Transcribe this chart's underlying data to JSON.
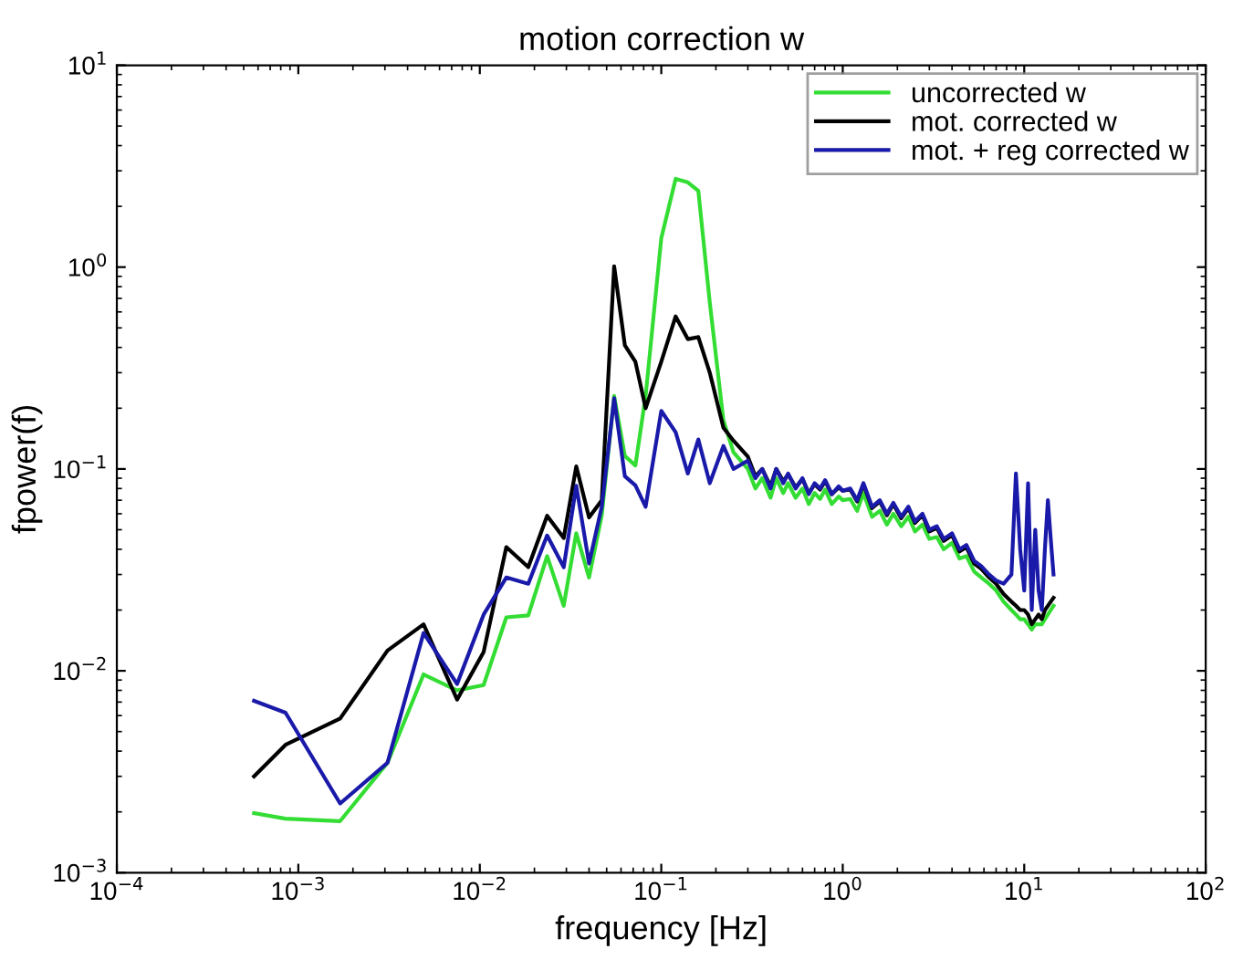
{
  "chart_data": {
    "type": "line",
    "title": "motion correction w",
    "xlabel": "frequency [Hz]",
    "ylabel": "fpower(f)",
    "log": "xy",
    "grid": false,
    "legend": "top right",
    "line_style": "solid",
    "marker": "none",
    "xlim": [
      0.0001,
      100
    ],
    "ylim": [
      0.001,
      10
    ],
    "xticks": [
      {
        "value": 0.0001,
        "label": "10$^{−4}$"
      },
      {
        "value": 0.001,
        "label": "10$^{−3}$"
      },
      {
        "value": 0.01,
        "label": "10$^{−2}$"
      },
      {
        "value": 0.1,
        "label": "10$^{−1}$"
      },
      {
        "value": 1,
        "label": "10$^{0}$"
      },
      {
        "value": 10,
        "label": "10$^{1}$"
      },
      {
        "value": 100,
        "label": "10$^{2}$"
      }
    ],
    "yticks": [
      {
        "value": 0.001,
        "label": "10$^{−3}$"
      },
      {
        "value": 0.01,
        "label": "10$^{−2}$"
      },
      {
        "value": 0.1,
        "label": "10$^{−1}$"
      },
      {
        "value": 1,
        "label": "10$^{0}$"
      },
      {
        "value": 10,
        "label": "10$^{1}$"
      }
    ],
    "x": [
      0.00057,
      0.00085,
      0.0017,
      0.0031,
      0.0049,
      0.0075,
      0.0105,
      0.014,
      0.0185,
      0.0235,
      0.029,
      0.034,
      0.04,
      0.047,
      0.055,
      0.063,
      0.072,
      0.082,
      0.1,
      0.12,
      0.14,
      0.16,
      0.185,
      0.22,
      0.25,
      0.3,
      0.33,
      0.36,
      0.4,
      0.43,
      0.47,
      0.5,
      0.55,
      0.6,
      0.65,
      0.7,
      0.75,
      0.8,
      0.87,
      0.95,
      1.0,
      1.1,
      1.2,
      1.3,
      1.45,
      1.6,
      1.75,
      1.9,
      2.1,
      2.3,
      2.5,
      2.75,
      3.0,
      3.3,
      3.6,
      4.0,
      4.4,
      4.8,
      5.3,
      5.8,
      6.4,
      7.0,
      7.7,
      8.5,
      9.0,
      9.5,
      10,
      10.5,
      11,
      11.5,
      12,
      12.5,
      13,
      13.5,
      14,
      14.5
    ],
    "series": [
      {
        "name": "uncorrected w",
        "color": "#33dd33",
        "values": [
          0.00197,
          0.00185,
          0.0018,
          0.0035,
          0.0096,
          0.008,
          0.0085,
          0.0184,
          0.0188,
          0.037,
          0.021,
          0.048,
          0.029,
          0.059,
          0.23,
          0.116,
          0.104,
          0.23,
          1.39,
          2.74,
          2.63,
          2.39,
          0.67,
          0.174,
          0.121,
          0.1,
          0.08,
          0.09,
          0.072,
          0.09,
          0.076,
          0.085,
          0.072,
          0.08,
          0.067,
          0.076,
          0.071,
          0.079,
          0.067,
          0.073,
          0.07,
          0.071,
          0.062,
          0.076,
          0.058,
          0.062,
          0.053,
          0.06,
          0.052,
          0.058,
          0.049,
          0.053,
          0.045,
          0.046,
          0.04,
          0.043,
          0.036,
          0.037,
          0.031,
          0.029,
          0.027,
          0.025,
          0.022,
          0.02,
          0.019,
          0.018,
          0.018,
          0.017,
          0.016,
          0.017,
          0.017,
          0.017,
          0.018,
          0.019,
          0.02,
          0.021
        ]
      },
      {
        "name": "mot. corrected w",
        "color": "#000000",
        "values": [
          0.003,
          0.0043,
          0.0058,
          0.0126,
          0.017,
          0.0072,
          0.0124,
          0.041,
          0.0326,
          0.0586,
          0.0455,
          0.103,
          0.0575,
          0.07,
          1.01,
          0.41,
          0.34,
          0.2,
          0.34,
          0.57,
          0.44,
          0.45,
          0.3,
          0.16,
          0.138,
          0.115,
          0.092,
          0.1,
          0.082,
          0.1,
          0.087,
          0.094,
          0.081,
          0.089,
          0.076,
          0.084,
          0.079,
          0.087,
          0.075,
          0.081,
          0.078,
          0.079,
          0.069,
          0.084,
          0.064,
          0.069,
          0.059,
          0.067,
          0.057,
          0.064,
          0.054,
          0.059,
          0.049,
          0.051,
          0.044,
          0.047,
          0.039,
          0.041,
          0.034,
          0.032,
          0.029,
          0.027,
          0.024,
          0.022,
          0.021,
          0.02,
          0.02,
          0.019,
          0.017,
          0.018,
          0.019,
          0.018,
          0.02,
          0.021,
          0.022,
          0.023
        ]
      },
      {
        "name": "mot. + reg corrected w",
        "color": "#1a1aaa",
        "values": [
          0.0071,
          0.0062,
          0.0022,
          0.0035,
          0.0154,
          0.0086,
          0.019,
          0.029,
          0.027,
          0.0468,
          0.0326,
          0.0826,
          0.034,
          0.065,
          0.224,
          0.092,
          0.083,
          0.065,
          0.194,
          0.152,
          0.095,
          0.14,
          0.085,
          0.13,
          0.1,
          0.11,
          0.09,
          0.1,
          0.08,
          0.1,
          0.085,
          0.095,
          0.08,
          0.09,
          0.075,
          0.085,
          0.08,
          0.088,
          0.075,
          0.082,
          0.078,
          0.08,
          0.07,
          0.085,
          0.065,
          0.07,
          0.06,
          0.068,
          0.058,
          0.065,
          0.055,
          0.06,
          0.05,
          0.052,
          0.045,
          0.048,
          0.04,
          0.042,
          0.035,
          0.033,
          0.03,
          0.028,
          0.027,
          0.03,
          0.095,
          0.04,
          0.025,
          0.085,
          0.02,
          0.05,
          0.025,
          0.02,
          0.04,
          0.07,
          0.045,
          0.03
        ]
      }
    ]
  }
}
